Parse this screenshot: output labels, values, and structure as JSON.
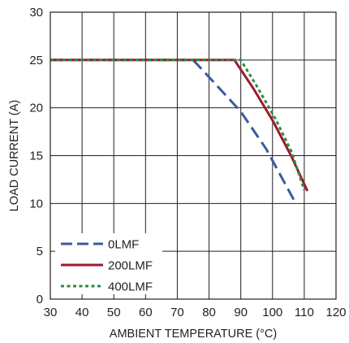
{
  "chart_data": {
    "type": "line",
    "title": "",
    "xlabel": "AMBIENT TEMPERATURE (°C)",
    "ylabel": "LOAD CURRENT (A)",
    "xlim": [
      30,
      120
    ],
    "ylim": [
      0,
      30
    ],
    "x_ticks": [
      30,
      40,
      50,
      60,
      70,
      80,
      90,
      100,
      110,
      120
    ],
    "y_ticks": [
      0,
      5,
      10,
      15,
      20,
      25,
      30
    ],
    "grid": true,
    "legend_position": "bottom-left",
    "series": [
      {
        "name": "0LMF",
        "color": "#3a5ba0",
        "dash": "dashed",
        "points": [
          [
            30,
            25
          ],
          [
            75,
            25
          ],
          [
            82,
            22.5
          ],
          [
            90,
            19.6
          ],
          [
            98,
            15.7
          ],
          [
            107,
            10.2
          ]
        ]
      },
      {
        "name": "200LMF",
        "color": "#9b1b30",
        "dash": "solid",
        "points": [
          [
            30,
            25
          ],
          [
            88,
            25
          ],
          [
            94,
            22
          ],
          [
            100,
            18.7
          ],
          [
            106,
            14.9
          ],
          [
            111,
            11.3
          ]
        ]
      },
      {
        "name": "400LMF",
        "color": "#2e8b3d",
        "dash": "dotted",
        "points": [
          [
            30,
            25
          ],
          [
            90,
            25
          ],
          [
            95,
            22.3
          ],
          [
            101,
            18.8
          ],
          [
            106,
            15.4
          ],
          [
            110,
            11.4
          ]
        ]
      }
    ]
  }
}
